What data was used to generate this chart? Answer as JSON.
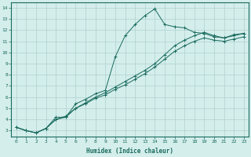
{
  "xlabel": "Humidex (Indice chaleur)",
  "bg_color": "#d4eeec",
  "grid_color": "#b0d0ce",
  "line_color": "#1a6b5e",
  "xlim": [
    -0.5,
    23.5
  ],
  "ylim": [
    2.5,
    14.5
  ],
  "xticks": [
    0,
    1,
    2,
    3,
    4,
    5,
    6,
    7,
    8,
    9,
    10,
    11,
    12,
    13,
    14,
    15,
    16,
    17,
    18,
    19,
    20,
    21,
    22,
    23
  ],
  "yticks": [
    3,
    4,
    5,
    6,
    7,
    8,
    9,
    10,
    11,
    12,
    13,
    14
  ],
  "series1_x": [
    0,
    1,
    2,
    3,
    4,
    5,
    6,
    7,
    8,
    9,
    10,
    11,
    12,
    13,
    14,
    15,
    16,
    17,
    18,
    19,
    20,
    21,
    22,
    23
  ],
  "series1_y": [
    3.3,
    3.0,
    2.8,
    3.2,
    4.2,
    4.2,
    5.4,
    5.8,
    6.3,
    6.6,
    9.6,
    11.5,
    12.5,
    13.3,
    13.9,
    12.5,
    12.3,
    12.2,
    11.8,
    11.7,
    11.4,
    11.3,
    11.6,
    11.7
  ],
  "series2_x": [
    0,
    1,
    2,
    3,
    4,
    5,
    6,
    7,
    8,
    9,
    10,
    11,
    12,
    13,
    14,
    15,
    16,
    17,
    18,
    19,
    20,
    21,
    22,
    23
  ],
  "series2_y": [
    3.3,
    3.0,
    2.8,
    3.2,
    4.0,
    4.3,
    5.0,
    5.5,
    6.0,
    6.4,
    6.9,
    7.4,
    7.9,
    8.4,
    9.0,
    9.8,
    10.6,
    11.1,
    11.5,
    11.8,
    11.5,
    11.3,
    11.5,
    11.7
  ],
  "series3_x": [
    0,
    1,
    2,
    3,
    4,
    5,
    6,
    7,
    8,
    9,
    10,
    11,
    12,
    13,
    14,
    15,
    16,
    17,
    18,
    19,
    20,
    21,
    22,
    23
  ],
  "series3_y": [
    3.3,
    3.0,
    2.8,
    3.2,
    4.0,
    4.2,
    5.0,
    5.4,
    5.9,
    6.2,
    6.7,
    7.1,
    7.6,
    8.1,
    8.7,
    9.4,
    10.1,
    10.6,
    11.0,
    11.3,
    11.1,
    11.0,
    11.2,
    11.4
  ]
}
